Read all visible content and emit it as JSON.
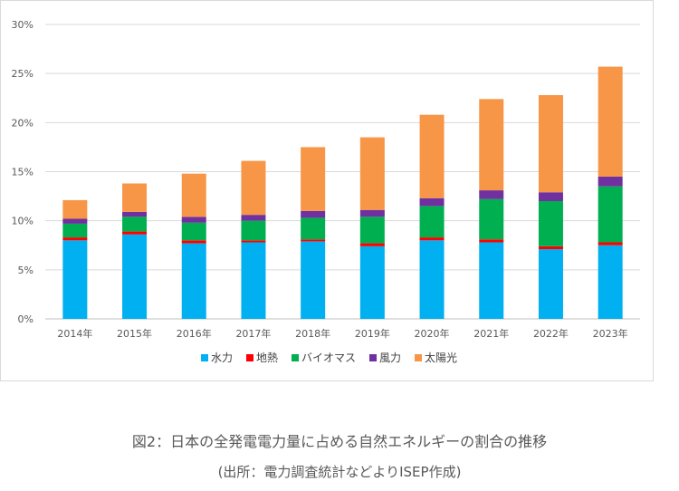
{
  "chart_data": {
    "type": "bar",
    "stacked": true,
    "categories": [
      "2014年",
      "2015年",
      "2016年",
      "2017年",
      "2018年",
      "2019年",
      "2020年",
      "2021年",
      "2022年",
      "2023年"
    ],
    "series": [
      {
        "name": "水力",
        "color": "#00b0f0",
        "values": [
          8.0,
          8.6,
          7.7,
          7.8,
          7.9,
          7.4,
          8.0,
          7.8,
          7.1,
          7.5
        ]
      },
      {
        "name": "地熱",
        "color": "#ff0000",
        "values": [
          0.3,
          0.3,
          0.3,
          0.2,
          0.2,
          0.3,
          0.3,
          0.3,
          0.3,
          0.3
        ]
      },
      {
        "name": "バイオマス",
        "color": "#00b050",
        "values": [
          1.4,
          1.5,
          1.8,
          2.0,
          2.2,
          2.7,
          3.2,
          4.1,
          4.6,
          5.7
        ]
      },
      {
        "name": "風力",
        "color": "#7030a0",
        "values": [
          0.5,
          0.5,
          0.6,
          0.6,
          0.7,
          0.7,
          0.8,
          0.9,
          0.9,
          1.0
        ]
      },
      {
        "name": "太陽光",
        "color": "#f79646",
        "values": [
          1.9,
          2.9,
          4.4,
          5.5,
          6.5,
          7.4,
          8.5,
          9.3,
          9.9,
          11.2
        ]
      }
    ],
    "yticks": [
      "0%",
      "5%",
      "10%",
      "15%",
      "20%",
      "25%",
      "30%"
    ],
    "ylim": [
      0,
      30
    ],
    "grid": true,
    "legend": "bottom-center"
  },
  "caption": {
    "main": "図2：日本の全発電電力量に占める自然エネルギーの割合の推移",
    "sub": "(出所：電力調査統計などよりISEP作成)"
  }
}
